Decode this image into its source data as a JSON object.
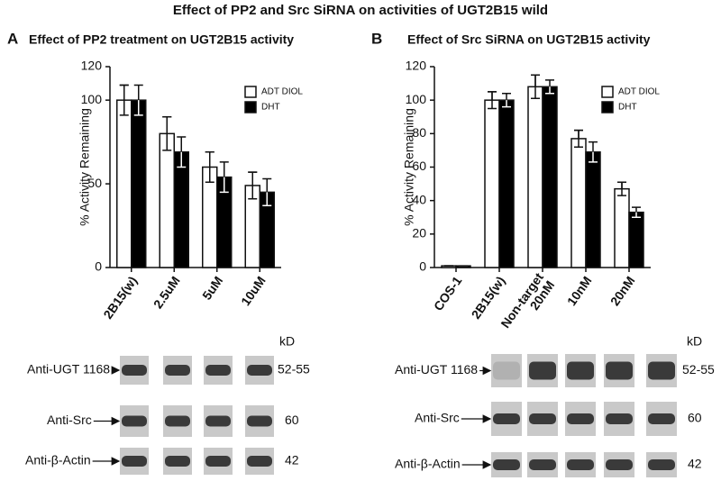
{
  "title": "Effect of PP2 and Src SiRNA on activities of UGT2B15 wild",
  "chart_data": [
    {
      "type": "bar",
      "panel": "A",
      "title": "Effect of PP2 treatment on UGT2B15 activity",
      "y_label": "% Activity Remaining",
      "categories": [
        "2B15(w)",
        "2.5uM",
        "5uM",
        "10uM"
      ],
      "series": [
        {
          "name": "ADT DIOL",
          "color": "#ffffff",
          "values": [
            100,
            80,
            60,
            49
          ],
          "errors": [
            9,
            10,
            9,
            8
          ]
        },
        {
          "name": "DHT",
          "color": "#000000",
          "values": [
            100,
            69,
            54,
            45
          ],
          "errors": [
            9,
            9,
            9,
            8
          ]
        }
      ],
      "ylim": [
        0,
        120
      ],
      "yticks": [
        0,
        50,
        100,
        120
      ],
      "legend": "upper right"
    },
    {
      "type": "bar",
      "panel": "B",
      "title": "Effect of Src SiRNA on UGT2B15 activity",
      "y_label": "% Activity Remaining",
      "categories": [
        "COS-1",
        "2B15(w)",
        "Non-target\n20nM",
        "10nM",
        "20nM"
      ],
      "series": [
        {
          "name": "ADT DIOL",
          "color": "#ffffff",
          "values": [
            1,
            100,
            108,
            77,
            47
          ],
          "errors": [
            0,
            5,
            7,
            5,
            4
          ]
        },
        {
          "name": "DHT",
          "color": "#000000",
          "values": [
            1,
            100,
            108,
            69,
            33
          ],
          "errors": [
            0,
            4,
            4,
            6,
            3
          ]
        }
      ],
      "ylim": [
        0,
        120
      ],
      "yticks": [
        0,
        20,
        40,
        60,
        80,
        100,
        120
      ],
      "legend": "upper right"
    }
  ],
  "blots": [
    {
      "row_labels": [
        "Anti-UGT 1168",
        "Anti-Src",
        "Anti-β-Actin"
      ],
      "unit": "kD",
      "sizes": [
        "52-55",
        60,
        42
      ]
    },
    {
      "row_labels": [
        "Anti-UGT 1168",
        "Anti-Src",
        "Anti-β-Actin"
      ],
      "unit": "kD",
      "sizes": [
        "52-55",
        60,
        42
      ]
    }
  ]
}
